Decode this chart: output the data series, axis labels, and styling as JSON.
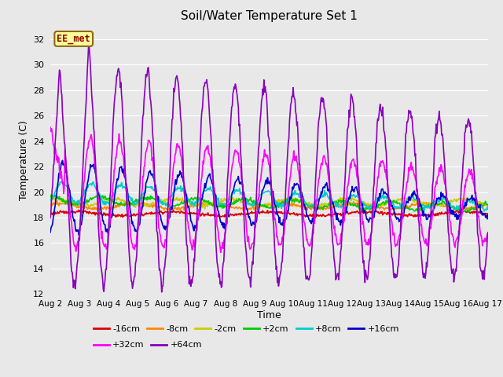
{
  "title": "Soil/Water Temperature Set 1",
  "xlabel": "Time",
  "ylabel": "Temperature (C)",
  "ylim": [
    12,
    33
  ],
  "yticks": [
    12,
    14,
    16,
    18,
    20,
    22,
    24,
    26,
    28,
    30,
    32
  ],
  "x_tick_labels": [
    "Aug 2",
    "Aug 3",
    "Aug 4",
    "Aug 5",
    "Aug 6",
    "Aug 7",
    "Aug 8",
    "Aug 9",
    "Aug 10",
    "Aug 11",
    "Aug 12",
    "Aug 13",
    "Aug 14",
    "Aug 15",
    "Aug 16",
    "Aug 17"
  ],
  "annotation_text": "EE_met",
  "bg_color": "#e8e8e8",
  "grid_color": "#ffffff",
  "series_order": [
    "-16cm",
    "-8cm",
    "-2cm",
    "+2cm",
    "+8cm",
    "+16cm",
    "+32cm",
    "+64cm"
  ],
  "series": {
    "-16cm": {
      "color": "#dd0000",
      "lw": 1.2
    },
    "-8cm": {
      "color": "#ff8800",
      "lw": 1.2
    },
    "-2cm": {
      "color": "#cccc00",
      "lw": 1.2
    },
    "+2cm": {
      "color": "#00cc00",
      "lw": 1.2
    },
    "+8cm": {
      "color": "#00cccc",
      "lw": 1.2
    },
    "+16cm": {
      "color": "#0000cc",
      "lw": 1.2
    },
    "+32cm": {
      "color": "#ff00ff",
      "lw": 1.2
    },
    "+64cm": {
      "color": "#8800bb",
      "lw": 1.2
    }
  },
  "legend_ncol1": 6,
  "legend_ncol2": 2
}
